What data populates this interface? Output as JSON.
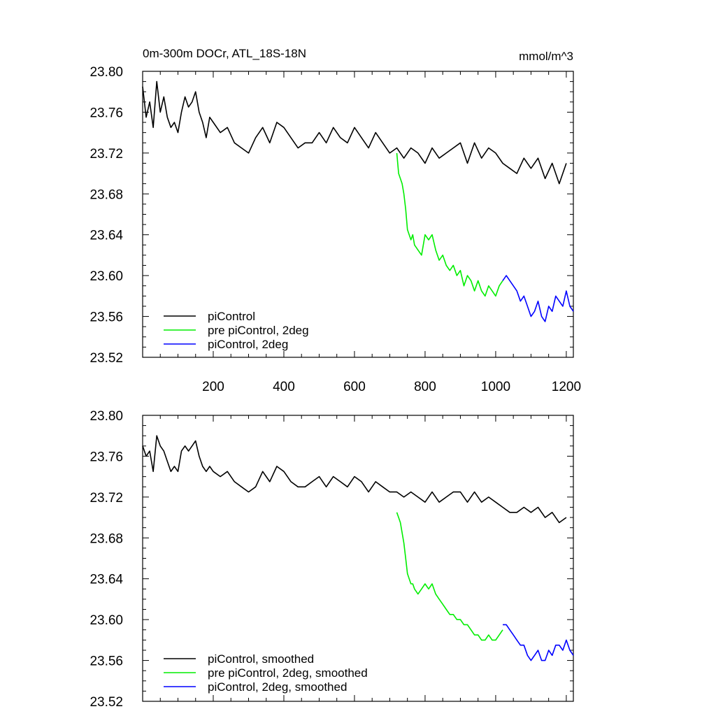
{
  "chart_data": [
    {
      "type": "line",
      "title": "0m-300m DOCr, ATL_18S-18N",
      "units": "mmol/m^3",
      "xlim": [
        0,
        1220
      ],
      "ylim": [
        23.52,
        23.8
      ],
      "xticks": [
        200,
        400,
        600,
        800,
        1000,
        1200
      ],
      "xtick_labels": [
        "200",
        "400",
        "600",
        "800",
        "1000",
        "1200"
      ],
      "yticks": [
        23.52,
        23.56,
        23.6,
        23.64,
        23.68,
        23.72,
        23.76,
        23.8
      ],
      "ytick_labels": [
        "23.52",
        "23.56",
        "23.60",
        "23.64",
        "23.68",
        "23.72",
        "23.76",
        "23.80"
      ],
      "legend": "bottom-left",
      "series": [
        {
          "name": "piControl",
          "color": "#000000",
          "x": [
            0,
            10,
            20,
            30,
            40,
            50,
            60,
            70,
            80,
            90,
            100,
            110,
            120,
            130,
            140,
            150,
            160,
            170,
            180,
            190,
            200,
            220,
            240,
            260,
            280,
            300,
            320,
            340,
            360,
            380,
            400,
            420,
            440,
            460,
            480,
            500,
            520,
            540,
            560,
            580,
            600,
            620,
            640,
            660,
            680,
            700,
            720,
            740,
            760,
            780,
            800,
            820,
            840,
            860,
            880,
            900,
            920,
            940,
            960,
            980,
            1000,
            1020,
            1040,
            1060,
            1080,
            1100,
            1120,
            1140,
            1160,
            1180,
            1200
          ],
          "y": [
            23.785,
            23.755,
            23.77,
            23.745,
            23.79,
            23.76,
            23.775,
            23.755,
            23.745,
            23.75,
            23.74,
            23.76,
            23.775,
            23.765,
            23.77,
            23.78,
            23.76,
            23.75,
            23.735,
            23.755,
            23.75,
            23.74,
            23.745,
            23.73,
            23.725,
            23.72,
            23.735,
            23.745,
            23.73,
            23.75,
            23.745,
            23.735,
            23.725,
            23.73,
            23.73,
            23.74,
            23.73,
            23.745,
            23.735,
            23.73,
            23.745,
            23.735,
            23.725,
            23.74,
            23.73,
            23.72,
            23.725,
            23.715,
            23.725,
            23.72,
            23.71,
            23.725,
            23.715,
            23.72,
            23.725,
            23.73,
            23.71,
            23.73,
            23.715,
            23.725,
            23.72,
            23.71,
            23.705,
            23.7,
            23.715,
            23.705,
            23.715,
            23.695,
            23.71,
            23.69,
            23.71
          ]
        },
        {
          "name": "pre piControl, 2deg",
          "color": "#00ee00",
          "x": [
            720,
            725,
            730,
            735,
            740,
            745,
            750,
            755,
            760,
            765,
            770,
            780,
            790,
            800,
            810,
            820,
            830,
            840,
            850,
            860,
            870,
            880,
            890,
            900,
            910,
            920,
            930,
            940,
            950,
            960,
            970,
            980,
            990,
            1000,
            1010,
            1020
          ],
          "y": [
            23.72,
            23.7,
            23.695,
            23.69,
            23.68,
            23.665,
            23.645,
            23.64,
            23.635,
            23.64,
            23.63,
            23.625,
            23.62,
            23.64,
            23.635,
            23.64,
            23.625,
            23.615,
            23.62,
            23.61,
            23.605,
            23.61,
            23.6,
            23.605,
            23.59,
            23.6,
            23.595,
            23.585,
            23.595,
            23.585,
            23.58,
            23.59,
            23.585,
            23.58,
            23.59,
            23.595
          ]
        },
        {
          "name": "piControl, 2deg",
          "color": "#0000ff",
          "x": [
            1020,
            1030,
            1040,
            1050,
            1060,
            1070,
            1080,
            1090,
            1100,
            1110,
            1120,
            1130,
            1140,
            1150,
            1160,
            1170,
            1180,
            1190,
            1200,
            1210,
            1220
          ],
          "y": [
            23.595,
            23.6,
            23.595,
            23.59,
            23.585,
            23.575,
            23.58,
            23.57,
            23.56,
            23.565,
            23.575,
            23.56,
            23.555,
            23.57,
            23.565,
            23.58,
            23.575,
            23.57,
            23.585,
            23.57,
            23.565
          ]
        }
      ]
    },
    {
      "type": "line",
      "xlim": [
        0,
        1220
      ],
      "ylim": [
        23.52,
        23.8
      ],
      "xticks": [
        200,
        400,
        600,
        800,
        1000,
        1200
      ],
      "yticks": [
        23.52,
        23.56,
        23.6,
        23.64,
        23.68,
        23.72,
        23.76,
        23.8
      ],
      "ytick_labels": [
        "23.52",
        "23.56",
        "23.60",
        "23.64",
        "23.68",
        "23.72",
        "23.76",
        "23.80"
      ],
      "legend": "bottom-left",
      "series": [
        {
          "name": "piControl, smoothed",
          "color": "#000000",
          "x": [
            0,
            10,
            20,
            30,
            40,
            50,
            60,
            70,
            80,
            90,
            100,
            110,
            120,
            130,
            140,
            150,
            160,
            170,
            180,
            190,
            200,
            220,
            240,
            260,
            280,
            300,
            320,
            340,
            360,
            380,
            400,
            420,
            440,
            460,
            480,
            500,
            520,
            540,
            560,
            580,
            600,
            620,
            640,
            660,
            680,
            700,
            720,
            740,
            760,
            780,
            800,
            820,
            840,
            860,
            880,
            900,
            920,
            940,
            960,
            980,
            1000,
            1020,
            1040,
            1060,
            1080,
            1100,
            1120,
            1140,
            1160,
            1180,
            1200
          ],
          "y": [
            23.77,
            23.76,
            23.765,
            23.745,
            23.78,
            23.77,
            23.765,
            23.755,
            23.745,
            23.75,
            23.745,
            23.765,
            23.77,
            23.765,
            23.77,
            23.775,
            23.76,
            23.75,
            23.745,
            23.75,
            23.745,
            23.74,
            23.745,
            23.735,
            23.73,
            23.725,
            23.73,
            23.745,
            23.735,
            23.75,
            23.745,
            23.735,
            23.73,
            23.73,
            23.735,
            23.74,
            23.73,
            23.74,
            23.735,
            23.73,
            23.74,
            23.735,
            23.725,
            23.735,
            23.73,
            23.725,
            23.725,
            23.72,
            23.725,
            23.72,
            23.715,
            23.725,
            23.715,
            23.72,
            23.725,
            23.725,
            23.715,
            23.725,
            23.715,
            23.72,
            23.715,
            23.71,
            23.705,
            23.705,
            23.71,
            23.705,
            23.71,
            23.7,
            23.705,
            23.695,
            23.7
          ]
        },
        {
          "name": "pre piControl, 2deg, smoothed",
          "color": "#00ee00",
          "x": [
            720,
            725,
            730,
            735,
            740,
            745,
            750,
            755,
            760,
            765,
            770,
            780,
            790,
            800,
            810,
            820,
            830,
            840,
            850,
            860,
            870,
            880,
            890,
            900,
            910,
            920,
            930,
            940,
            950,
            960,
            970,
            980,
            990,
            1000,
            1010,
            1020
          ],
          "y": [
            23.705,
            23.7,
            23.695,
            23.685,
            23.675,
            23.66,
            23.645,
            23.64,
            23.635,
            23.635,
            23.63,
            23.625,
            23.63,
            23.635,
            23.63,
            23.635,
            23.625,
            23.62,
            23.615,
            23.61,
            23.605,
            23.605,
            23.6,
            23.6,
            23.595,
            23.595,
            23.59,
            23.585,
            23.585,
            23.58,
            23.58,
            23.585,
            23.58,
            23.58,
            23.585,
            23.59
          ]
        },
        {
          "name": "piControl, 2deg, smoothed",
          "color": "#0000ff",
          "x": [
            1020,
            1030,
            1040,
            1050,
            1060,
            1070,
            1080,
            1090,
            1100,
            1110,
            1120,
            1130,
            1140,
            1150,
            1160,
            1170,
            1180,
            1190,
            1200,
            1210,
            1220
          ],
          "y": [
            23.595,
            23.595,
            23.59,
            23.585,
            23.58,
            23.575,
            23.575,
            23.565,
            23.56,
            23.565,
            23.57,
            23.56,
            23.56,
            23.57,
            23.565,
            23.575,
            23.575,
            23.57,
            23.58,
            23.57,
            23.565
          ]
        }
      ]
    }
  ]
}
